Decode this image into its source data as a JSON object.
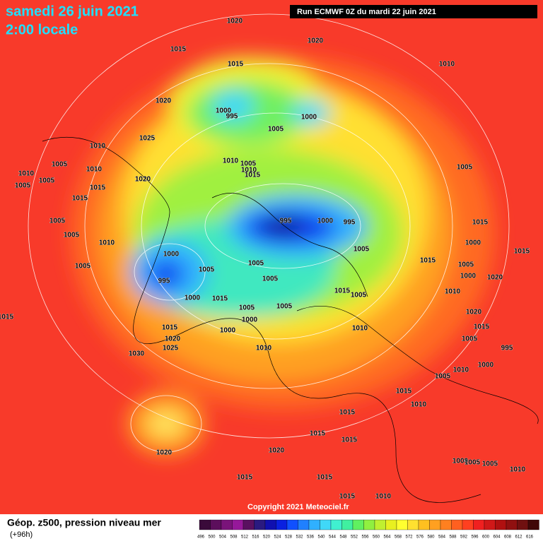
{
  "header": {
    "date": "samedi 26 juin 2021",
    "time": "2:00 locale",
    "run": "Run ECMWF 0Z du mardi 22 juin 2021"
  },
  "footer": {
    "title": "Géop. z500, pression niveau mer",
    "subtitle": "(+96h)",
    "copyright": "Copyright 2021 Meteociel.fr"
  },
  "legend": {
    "levels": [
      "496",
      "500",
      "504",
      "508",
      "512",
      "516",
      "520",
      "524",
      "528",
      "532",
      "536",
      "540",
      "544",
      "548",
      "552",
      "556",
      "560",
      "564",
      "568",
      "572",
      "576",
      "580",
      "584",
      "588",
      "592",
      "596",
      "600",
      "604",
      "608",
      "612",
      "616"
    ],
    "colors": [
      "#3a0a3a",
      "#5c0f5c",
      "#7a147a",
      "#96189a",
      "#5a1060",
      "#2a1a80",
      "#1010b0",
      "#0a20e0",
      "#1050ff",
      "#2080ff",
      "#30b0ff",
      "#40d8f8",
      "#40f0d0",
      "#40f0a0",
      "#60f060",
      "#90f040",
      "#c0f030",
      "#e8f020",
      "#ffff30",
      "#ffe030",
      "#ffc020",
      "#ffa020",
      "#ff8020",
      "#ff6020",
      "#ff4020",
      "#f02020",
      "#d01818",
      "#b01010",
      "#901010",
      "#701010",
      "#400808"
    ]
  },
  "map": {
    "isobar_labels": [
      "1020",
      "1020",
      "1015",
      "1015",
      "1010",
      "1020",
      "1000",
      "995",
      "1000",
      "1005",
      "1025",
      "1010",
      "1005",
      "1010",
      "1010",
      "1005",
      "1010",
      "1015",
      "1010",
      "1005",
      "1020",
      "1005",
      "1015",
      "1005",
      "1015",
      "995",
      "1000",
      "995",
      "1005",
      "1005",
      "1010",
      "1015",
      "1000",
      "1005",
      "1015",
      "1000",
      "1005",
      "1005",
      "1015",
      "1005",
      "995",
      "1005",
      "1005",
      "1000",
      "1020",
      "1015",
      "1005",
      "1000",
      "1015",
      "1010",
      "1005",
      "1005",
      "1000",
      "1020",
      "1015",
      "1010",
      "1000",
      "1015",
      "1020",
      "1005",
      "1025",
      "1010",
      "995",
      "1030",
      "1010",
      "1000",
      "1005",
      "1015",
      "1010",
      "1015",
      "1015",
      "1015",
      "1020",
      "1020",
      "1000",
      "1005",
      "1005",
      "1010",
      "1015",
      "1015",
      "1015",
      "1010",
      "1015"
    ]
  }
}
